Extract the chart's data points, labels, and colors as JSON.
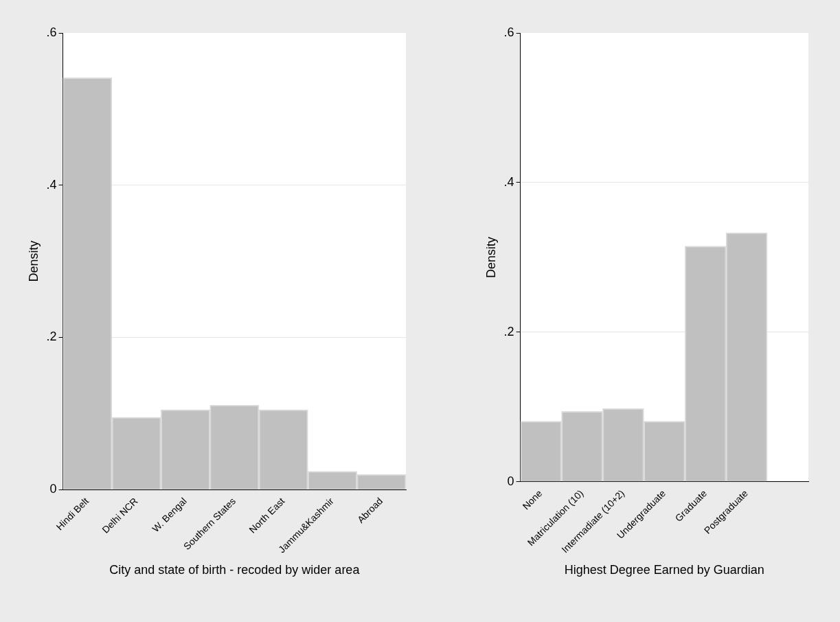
{
  "chart_data": [
    {
      "type": "bar",
      "xlabel": "City and state of birth - recoded by wider area",
      "ylabel": "Density",
      "categories": [
        "Hindi Belt",
        "Delhi NCR",
        "W. Bengal",
        "Southern States",
        "North East",
        "Jammu&Kashmir",
        "Abroad"
      ],
      "values": [
        0.541,
        0.095,
        0.105,
        0.111,
        0.105,
        0.024,
        0.02
      ],
      "color": "#c0c0c0",
      "ylim": [
        0,
        0.6
      ],
      "yticks": [
        {
          "value": 0,
          "label": "0"
        },
        {
          "value": 0.2,
          "label": ".2"
        },
        {
          "value": 0.4,
          "label": ".4"
        },
        {
          "value": 0.6,
          "label": ".6"
        }
      ],
      "grid": "y",
      "legend": false
    },
    {
      "type": "bar",
      "xlabel": "Highest Degree Earned by Guardian",
      "ylabel": "Density",
      "categories": [
        "None",
        "Matriculation (10)",
        "Intermadiate (10+2)",
        "Undergraduate",
        "Graduate",
        "Postgraduate",
        null
      ],
      "values": [
        0.081,
        0.094,
        0.098,
        0.081,
        0.315,
        0.333,
        null
      ],
      "color": "#c0c0c0",
      "ylim": [
        0,
        0.6
      ],
      "yticks": [
        {
          "value": 0,
          "label": "0"
        },
        {
          "value": 0.2,
          "label": ".2"
        },
        {
          "value": 0.4,
          "label": ".4"
        },
        {
          "value": 0.6,
          "label": ".6"
        }
      ],
      "grid": "y",
      "legend": false
    }
  ]
}
